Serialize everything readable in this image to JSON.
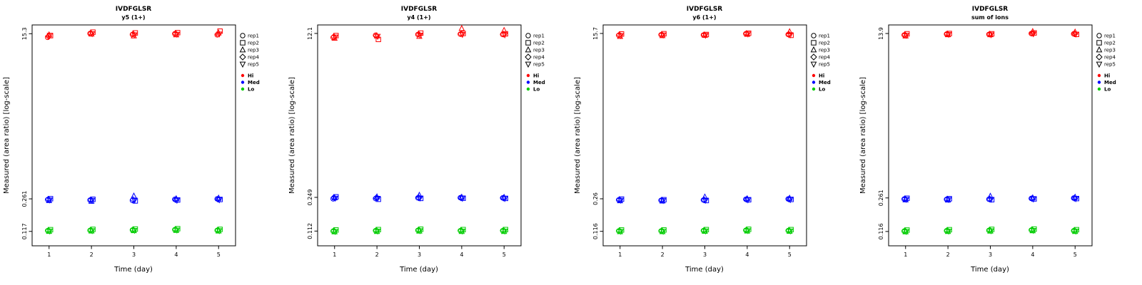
{
  "legend": {
    "reps": [
      {
        "label": "rep1",
        "symbol": "circle"
      },
      {
        "label": "rep2",
        "symbol": "square"
      },
      {
        "label": "rep3",
        "symbol": "triangle-up"
      },
      {
        "label": "rep4",
        "symbol": "diamond"
      },
      {
        "label": "rep5",
        "symbol": "triangle-down"
      }
    ],
    "levels": [
      {
        "label": "Hi",
        "color": "#FF0000"
      },
      {
        "label": "Med",
        "color": "#0000FF"
      },
      {
        "label": "Lo",
        "color": "#00CC00"
      }
    ]
  },
  "chart_data": [
    {
      "type": "scatter",
      "title": "IVDFGLSR",
      "subtitle": "y5 (1+)",
      "xlabel": "Time (day)",
      "ylabel": "Measured (area ratio) [log-scale]",
      "x_ticks": [
        "1",
        "2",
        "3",
        "4",
        "5"
      ],
      "y_scale": "log",
      "ylim": [
        0.082,
        19
      ],
      "y_ticks": [
        {
          "label": "15.3",
          "value": 15.3
        },
        {
          "label": "0.261",
          "value": 0.261
        },
        {
          "label": "0.117",
          "value": 0.117
        }
      ],
      "reps": [
        "rep1",
        "rep2",
        "rep3",
        "rep4",
        "rep5"
      ],
      "series": [
        {
          "name": "Hi",
          "color": "#FF0000",
          "values_by_day": [
            [
              14.0,
              14.6,
              14.9,
              14.4,
              14.7
            ],
            [
              15.4,
              15.9,
              15.2,
              15.5,
              15.3
            ],
            [
              15.0,
              15.6,
              14.5,
              15.2,
              14.9
            ],
            [
              15.3,
              15.7,
              14.9,
              15.4,
              15.1
            ],
            [
              14.9,
              16.3,
              15.6,
              15.1,
              15.2
            ]
          ]
        },
        {
          "name": "Med",
          "color": "#0000FF",
          "values_by_day": [
            [
              0.256,
              0.262,
              0.25,
              0.259,
              0.254
            ],
            [
              0.253,
              0.258,
              0.246,
              0.255,
              0.251
            ],
            [
              0.251,
              0.248,
              0.28,
              0.256,
              0.253
            ],
            [
              0.258,
              0.254,
              0.262,
              0.256,
              0.252
            ],
            [
              0.261,
              0.257,
              0.266,
              0.259,
              0.255
            ]
          ]
        },
        {
          "name": "Lo",
          "color": "#00CC00",
          "values_by_day": [
            [
              0.119,
              0.122,
              0.117,
              0.12,
              0.118
            ],
            [
              0.12,
              0.123,
              0.118,
              0.121,
              0.119
            ],
            [
              0.121,
              0.124,
              0.119,
              0.122,
              0.12
            ],
            [
              0.122,
              0.125,
              0.12,
              0.123,
              0.121
            ],
            [
              0.12,
              0.123,
              0.118,
              0.121,
              0.119
            ]
          ]
        }
      ]
    },
    {
      "type": "scatter",
      "title": "IVDFGLSR",
      "subtitle": "y4 (1+)",
      "xlabel": "Time (day)",
      "ylabel": "Measured (area ratio) [log-scale]",
      "x_ticks": [
        "1",
        "2",
        "3",
        "4",
        "5"
      ],
      "y_scale": "log",
      "ylim": [
        0.079,
        14.8
      ],
      "y_ticks": [
        {
          "label": "12.1",
          "value": 12.1
        },
        {
          "label": "0.249",
          "value": 0.249
        },
        {
          "label": "0.112",
          "value": 0.112
        }
      ],
      "reps": [
        "rep1",
        "rep2",
        "rep3",
        "rep4",
        "rep5"
      ],
      "series": [
        {
          "name": "Hi",
          "color": "#FF0000",
          "values_by_day": [
            [
              11.0,
              11.5,
              10.8,
              11.2,
              11.1
            ],
            [
              11.6,
              10.5,
              11.4,
              11.5,
              11.3
            ],
            [
              11.8,
              12.2,
              11.3,
              11.9,
              11.6
            ],
            [
              11.9,
              12.1,
              13.6,
              12.0,
              11.8
            ],
            [
              11.8,
              12.0,
              13.0,
              11.9,
              11.7
            ]
          ]
        },
        {
          "name": "Med",
          "color": "#0000FF",
          "values_by_day": [
            [
              0.24,
              0.252,
              0.246,
              0.248,
              0.244
            ],
            [
              0.242,
              0.238,
              0.252,
              0.246,
              0.243
            ],
            [
              0.246,
              0.243,
              0.262,
              0.248,
              0.245
            ],
            [
              0.247,
              0.244,
              0.25,
              0.246,
              0.243
            ],
            [
              0.246,
              0.243,
              0.249,
              0.245,
              0.242
            ]
          ]
        },
        {
          "name": "Lo",
          "color": "#00CC00",
          "values_by_day": [
            [
              0.112,
              0.115,
              0.11,
              0.113,
              0.111
            ],
            [
              0.113,
              0.116,
              0.111,
              0.114,
              0.112
            ],
            [
              0.114,
              0.117,
              0.112,
              0.115,
              0.113
            ],
            [
              0.113,
              0.116,
              0.111,
              0.114,
              0.112
            ],
            [
              0.113,
              0.116,
              0.111,
              0.114,
              0.112
            ]
          ]
        }
      ]
    },
    {
      "type": "scatter",
      "title": "IVDFGLSR",
      "subtitle": "y6 (1+)",
      "xlabel": "Time (day)",
      "ylabel": "Measured (area ratio) [log-scale]",
      "x_ticks": [
        "1",
        "2",
        "3",
        "4",
        "5"
      ],
      "y_scale": "log",
      "ylim": [
        0.081,
        19.4
      ],
      "y_ticks": [
        {
          "label": "15.7",
          "value": 15.7
        },
        {
          "label": "0.26",
          "value": 0.26
        },
        {
          "label": "0.116",
          "value": 0.116
        }
      ],
      "reps": [
        "rep1",
        "rep2",
        "rep3",
        "rep4",
        "rep5"
      ],
      "series": [
        {
          "name": "Hi",
          "color": "#FF0000",
          "values_by_day": [
            [
              15.0,
              15.5,
              14.6,
              15.2,
              14.9
            ],
            [
              15.2,
              15.6,
              14.9,
              15.3,
              15.1
            ],
            [
              15.1,
              15.3,
              15.0,
              15.2,
              15.0
            ],
            [
              15.6,
              15.8,
              15.4,
              15.7,
              15.5
            ],
            [
              15.3,
              15.0,
              16.4,
              15.4,
              15.2
            ]
          ]
        },
        {
          "name": "Med",
          "color": "#0000FF",
          "values_by_day": [
            [
              0.253,
              0.258,
              0.248,
              0.255,
              0.251
            ],
            [
              0.25,
              0.254,
              0.246,
              0.252,
              0.249
            ],
            [
              0.252,
              0.249,
              0.272,
              0.254,
              0.251
            ],
            [
              0.257,
              0.254,
              0.261,
              0.256,
              0.253
            ],
            [
              0.259,
              0.256,
              0.264,
              0.258,
              0.255
            ]
          ]
        },
        {
          "name": "Lo",
          "color": "#00CC00",
          "values_by_day": [
            [
              0.117,
              0.12,
              0.115,
              0.118,
              0.116
            ],
            [
              0.117,
              0.12,
              0.115,
              0.118,
              0.116
            ],
            [
              0.118,
              0.121,
              0.116,
              0.119,
              0.117
            ],
            [
              0.119,
              0.122,
              0.117,
              0.12,
              0.118
            ],
            [
              0.118,
              0.121,
              0.116,
              0.119,
              0.117
            ]
          ]
        }
      ]
    },
    {
      "type": "scatter",
      "title": "IVDFGLSR",
      "subtitle": "sum of ions",
      "xlabel": "Time (day)",
      "ylabel": "Measured (area ratio) [log-scale]",
      "x_ticks": [
        "1",
        "2",
        "3",
        "4",
        "5"
      ],
      "y_scale": "log",
      "ylim": [
        0.082,
        17.1
      ],
      "y_ticks": [
        {
          "label": "13.9",
          "value": 13.9
        },
        {
          "label": "0.261",
          "value": 0.261
        },
        {
          "label": "0.116",
          "value": 0.116
        }
      ],
      "reps": [
        "rep1",
        "rep2",
        "rep3",
        "rep4",
        "rep5"
      ],
      "series": [
        {
          "name": "Hi",
          "color": "#FF0000",
          "values_by_day": [
            [
              13.4,
              13.8,
              13.1,
              13.5,
              13.3
            ],
            [
              13.7,
              13.9,
              13.5,
              13.8,
              13.6
            ],
            [
              13.6,
              13.8,
              13.5,
              13.7,
              13.5
            ],
            [
              13.9,
              14.1,
              14.6,
              14.0,
              13.8
            ],
            [
              13.8,
              13.6,
              14.4,
              13.9,
              13.7
            ]
          ]
        },
        {
          "name": "Med",
          "color": "#0000FF",
          "values_by_day": [
            [
              0.254,
              0.259,
              0.249,
              0.256,
              0.252
            ],
            [
              0.252,
              0.256,
              0.248,
              0.254,
              0.251
            ],
            [
              0.253,
              0.25,
              0.272,
              0.255,
              0.252
            ],
            [
              0.258,
              0.255,
              0.262,
              0.257,
              0.254
            ],
            [
              0.26,
              0.257,
              0.266,
              0.259,
              0.256
            ]
          ]
        },
        {
          "name": "Lo",
          "color": "#00CC00",
          "values_by_day": [
            [
              0.117,
              0.12,
              0.115,
              0.118,
              0.116
            ],
            [
              0.118,
              0.121,
              0.116,
              0.119,
              0.117
            ],
            [
              0.119,
              0.122,
              0.117,
              0.12,
              0.118
            ],
            [
              0.12,
              0.123,
              0.118,
              0.121,
              0.119
            ],
            [
              0.118,
              0.121,
              0.116,
              0.119,
              0.117
            ]
          ]
        }
      ]
    }
  ]
}
